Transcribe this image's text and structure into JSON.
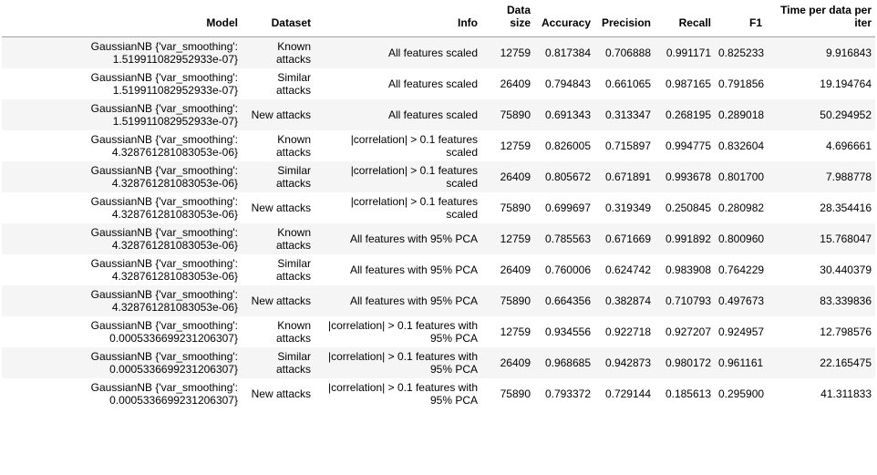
{
  "table": {
    "headers": {
      "model": "Model",
      "dataset": "Dataset",
      "info": "Info",
      "data_size": "Data size",
      "accuracy": "Accuracy",
      "precision": "Precision",
      "recall": "Recall",
      "f1": "F1",
      "time": "Time per data per iter"
    },
    "rows": [
      {
        "model": "GaussianNB {'var_smoothing': 1.519911082952933e-07}",
        "dataset": "Known attacks",
        "info": "All features scaled",
        "data_size": "12759",
        "accuracy": "0.817384",
        "precision": "0.706888",
        "recall": "0.991171",
        "f1": "0.825233",
        "time": "9.916843"
      },
      {
        "model": "GaussianNB {'var_smoothing': 1.519911082952933e-07}",
        "dataset": "Similar attacks",
        "info": "All features scaled",
        "data_size": "26409",
        "accuracy": "0.794843",
        "precision": "0.661065",
        "recall": "0.987165",
        "f1": "0.791856",
        "time": "19.194764"
      },
      {
        "model": "GaussianNB {'var_smoothing': 1.519911082952933e-07}",
        "dataset": "New attacks",
        "info": "All features scaled",
        "data_size": "75890",
        "accuracy": "0.691343",
        "precision": "0.313347",
        "recall": "0.268195",
        "f1": "0.289018",
        "time": "50.294952"
      },
      {
        "model": "GaussianNB {'var_smoothing': 4.328761281083053e-06}",
        "dataset": "Known attacks",
        "info": "|correlation| > 0.1 features scaled",
        "data_size": "12759",
        "accuracy": "0.826005",
        "precision": "0.715897",
        "recall": "0.994775",
        "f1": "0.832604",
        "time": "4.696661"
      },
      {
        "model": "GaussianNB {'var_smoothing': 4.328761281083053e-06}",
        "dataset": "Similar attacks",
        "info": "|correlation| > 0.1 features scaled",
        "data_size": "26409",
        "accuracy": "0.805672",
        "precision": "0.671891",
        "recall": "0.993678",
        "f1": "0.801700",
        "time": "7.988778"
      },
      {
        "model": "GaussianNB {'var_smoothing': 4.328761281083053e-06}",
        "dataset": "New attacks",
        "info": "|correlation| > 0.1 features scaled",
        "data_size": "75890",
        "accuracy": "0.699697",
        "precision": "0.319349",
        "recall": "0.250845",
        "f1": "0.280982",
        "time": "28.354416"
      },
      {
        "model": "GaussianNB {'var_smoothing': 4.328761281083053e-06}",
        "dataset": "Known attacks",
        "info": "All features with 95% PCA",
        "data_size": "12759",
        "accuracy": "0.785563",
        "precision": "0.671669",
        "recall": "0.991892",
        "f1": "0.800960",
        "time": "15.768047"
      },
      {
        "model": "GaussianNB {'var_smoothing': 4.328761281083053e-06}",
        "dataset": "Similar attacks",
        "info": "All features with 95% PCA",
        "data_size": "26409",
        "accuracy": "0.760006",
        "precision": "0.624742",
        "recall": "0.983908",
        "f1": "0.764229",
        "time": "30.440379"
      },
      {
        "model": "GaussianNB {'var_smoothing': 4.328761281083053e-06}",
        "dataset": "New attacks",
        "info": "All features with 95% PCA",
        "data_size": "75890",
        "accuracy": "0.664356",
        "precision": "0.382874",
        "recall": "0.710793",
        "f1": "0.497673",
        "time": "83.339836"
      },
      {
        "model": "GaussianNB {'var_smoothing': 0.0005336699231206307}",
        "dataset": "Known attacks",
        "info": "|correlation| > 0.1 features with 95% PCA",
        "data_size": "12759",
        "accuracy": "0.934556",
        "precision": "0.922718",
        "recall": "0.927207",
        "f1": "0.924957",
        "time": "12.798576"
      },
      {
        "model": "GaussianNB {'var_smoothing': 0.0005336699231206307}",
        "dataset": "Similar attacks",
        "info": "|correlation| > 0.1 features with 95% PCA",
        "data_size": "26409",
        "accuracy": "0.968685",
        "precision": "0.942873",
        "recall": "0.980172",
        "f1": "0.961161",
        "time": "22.165475"
      },
      {
        "model": "GaussianNB {'var_smoothing': 0.0005336699231206307}",
        "dataset": "New attacks",
        "info": "|correlation| > 0.1 features with 95% PCA",
        "data_size": "75890",
        "accuracy": "0.793372",
        "precision": "0.729144",
        "recall": "0.185613",
        "f1": "0.295900",
        "time": "41.311833"
      }
    ]
  }
}
